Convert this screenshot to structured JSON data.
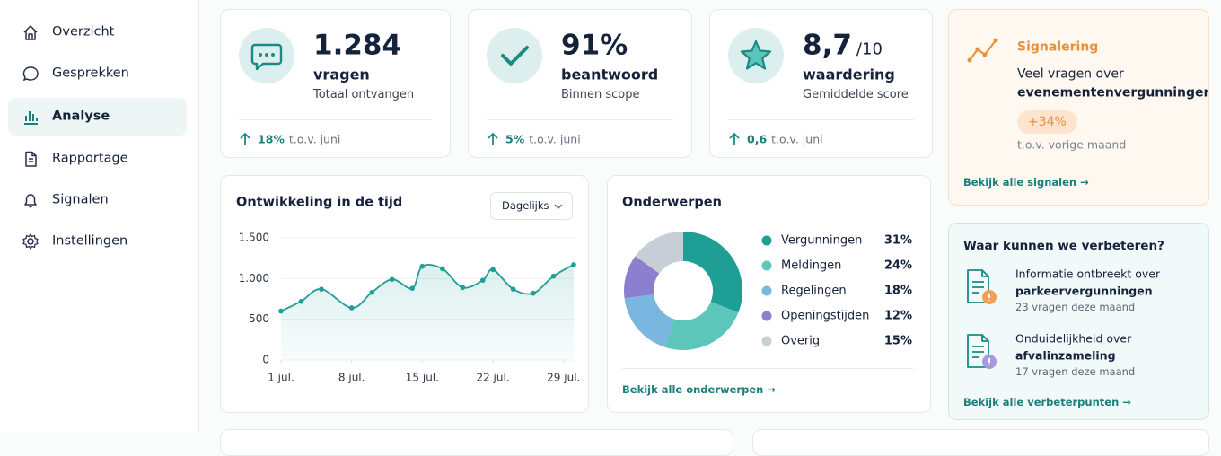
{
  "sidebar": {
    "items": [
      "Overzicht",
      "Gesprekken",
      "Analyse",
      "Rapportage",
      "Signalen",
      "Instellingen"
    ],
    "active": "Analyse"
  },
  "kpis": [
    {
      "value": "1.284",
      "unit": "vragen",
      "caption": "Totaal ontvangen",
      "change": "18%",
      "compare": "t.o.v. juni"
    },
    {
      "value": "91%",
      "unit": "beantwoord",
      "caption": "Binnen scope",
      "change": "5%",
      "compare": "t.o.v. juni"
    },
    {
      "value": "8,7",
      "scale": "/10",
      "unit": "waardering",
      "caption": "Gemiddelde score",
      "change": "0,6",
      "compare": "t.o.v. juni"
    }
  ],
  "signal": {
    "title": "Signalering",
    "text": "Veel vragen over",
    "highlight": "evenementenvergunningen",
    "badge": "+34%",
    "compare": "t.o.v. vorige maand",
    "link": "Bekijk alle signalen →"
  },
  "improvements": {
    "title": "Waar kunnen we verbeteren?",
    "items": [
      {
        "text": "Informatie ontbreekt over",
        "highlight": "parkeervergunningen",
        "meta": "23 vragen deze maand"
      },
      {
        "text": "Onduidelijkheid over",
        "highlight": "afvalinzameling",
        "meta": "17 vragen deze maand"
      }
    ],
    "link": "Bekijk alle verbeterpunten →"
  },
  "chart_data": [
    {
      "type": "line",
      "title": "Ontwikkeling in de tijd",
      "control": "Dagelijks",
      "x": [
        1,
        3,
        5,
        8,
        10,
        12,
        14,
        15,
        17,
        19,
        21,
        22,
        24,
        26,
        28,
        30
      ],
      "values": [
        600,
        720,
        870,
        640,
        830,
        990,
        880,
        1150,
        1120,
        890,
        980,
        1110,
        870,
        820,
        1030,
        1170
      ],
      "color": "#1f9e96",
      "xlim": [
        1,
        30
      ],
      "xticks": [
        {
          "value": 1,
          "label": "1 jul."
        },
        {
          "value": 8,
          "label": "8 jul."
        },
        {
          "value": 15,
          "label": "15 jul."
        },
        {
          "value": 22,
          "label": "22 jul."
        },
        {
          "value": 29,
          "label": "29 jul."
        }
      ],
      "ylim": [
        0,
        1500
      ],
      "yticks": [
        0,
        500,
        {
          "value": 1000,
          "label": "1.000"
        },
        {
          "value": 1500,
          "label": "1.500"
        }
      ],
      "grid": true
    },
    {
      "type": "pie",
      "title": "Onderwerpen",
      "categories": [
        "Vergunningen",
        "Meldingen",
        "Regelingen",
        "Openingstijden",
        "Overig"
      ],
      "values": [
        31,
        24,
        18,
        12,
        15
      ],
      "value_labels": [
        "31%",
        "24%",
        "18%",
        "12%",
        "15%"
      ],
      "colors": [
        "#1f9e96",
        "#5cc6ba",
        "#7ab7e0",
        "#8b7fd0",
        "#c8ced6"
      ],
      "link": "Bekijk alle onderwerpen →"
    }
  ]
}
